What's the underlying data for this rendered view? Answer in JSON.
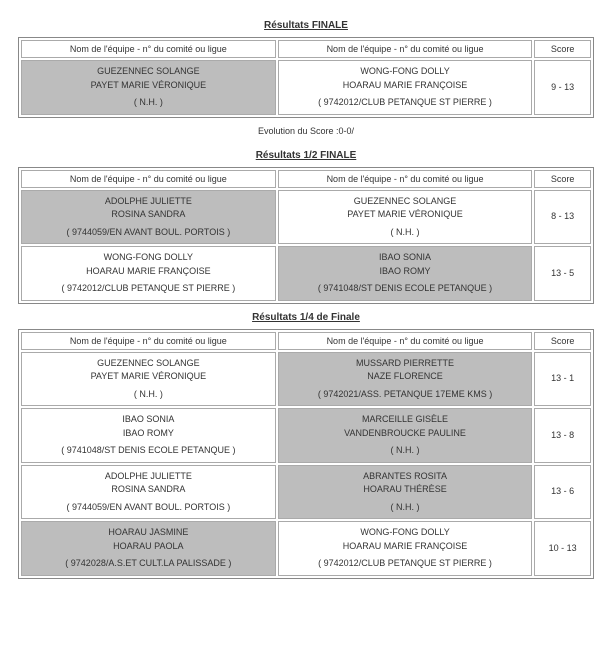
{
  "headers": {
    "team_header": "Nom de l'équipe - n° du comité ou ligue",
    "score_header": "Score"
  },
  "sections": [
    {
      "title": "Résultats FINALE",
      "after_text": "Evolution du Score :0-0/",
      "matches": [
        {
          "left": {
            "p1": "GUEZENNEC SOLANGE",
            "p2": "PAYET MARIE VÉRONIQUE",
            "club": "( N.H. )",
            "loser": true
          },
          "right": {
            "p1": "WONG-FONG DOLLY",
            "p2": "HOARAU MARIE FRANÇOISE",
            "club": "( 9742012/CLUB PETANQUE ST PIERRE )",
            "loser": false
          },
          "score": "9 - 13"
        }
      ]
    },
    {
      "title": "Résultats 1/2 FINALE",
      "matches": [
        {
          "left": {
            "p1": "ADOLPHE JULIETTE",
            "p2": "ROSINA SANDRA",
            "club": "( 9744059/EN AVANT BOUL. PORTOIS )",
            "loser": true
          },
          "right": {
            "p1": "GUEZENNEC SOLANGE",
            "p2": "PAYET MARIE VÉRONIQUE",
            "club": "( N.H. )",
            "loser": false
          },
          "score": "8 - 13"
        },
        {
          "left": {
            "p1": "WONG-FONG DOLLY",
            "p2": "HOARAU MARIE FRANÇOISE",
            "club": "( 9742012/CLUB PETANQUE ST PIERRE )",
            "loser": false
          },
          "right": {
            "p1": "IBAO SONIA",
            "p2": "IBAO ROMY",
            "club": "( 9741048/ST DENIS ECOLE PETANQUE )",
            "loser": true
          },
          "score": "13 - 5"
        }
      ]
    },
    {
      "title": "Résultats 1/4 de Finale",
      "matches": [
        {
          "left": {
            "p1": "GUEZENNEC SOLANGE",
            "p2": "PAYET MARIE VÉRONIQUE",
            "club": "( N.H. )",
            "loser": false
          },
          "right": {
            "p1": "MUSSARD PIERRETTE",
            "p2": "NAZE FLORENCE",
            "club": "( 9742021/ASS. PETANQUE 17EME KMS )",
            "loser": true
          },
          "score": "13 - 1"
        },
        {
          "left": {
            "p1": "IBAO SONIA",
            "p2": "IBAO ROMY",
            "club": "( 9741048/ST DENIS ECOLE PETANQUE )",
            "loser": false
          },
          "right": {
            "p1": "MARCEILLE GISÈLE",
            "p2": "VANDENBROUCKE PAULINE",
            "club": "( N.H. )",
            "loser": true
          },
          "score": "13 - 8"
        },
        {
          "left": {
            "p1": "ADOLPHE JULIETTE",
            "p2": "ROSINA SANDRA",
            "club": "( 9744059/EN AVANT BOUL. PORTOIS )",
            "loser": false
          },
          "right": {
            "p1": "ABRANTES ROSITA",
            "p2": "HOARAU THÉRÈSE",
            "club": "( N.H. )",
            "loser": true
          },
          "score": "13 - 6"
        },
        {
          "left": {
            "p1": "HOARAU JASMINE",
            "p2": "HOARAU PAOLA",
            "club": "( 9742028/A.S.ET CULT.LA PALISSADE )",
            "loser": true
          },
          "right": {
            "p1": "WONG-FONG DOLLY",
            "p2": "HOARAU MARIE FRANÇOISE",
            "club": "( 9742012/CLUB PETANQUE ST PIERRE )",
            "loser": false
          },
          "score": "10 - 13"
        }
      ]
    }
  ]
}
